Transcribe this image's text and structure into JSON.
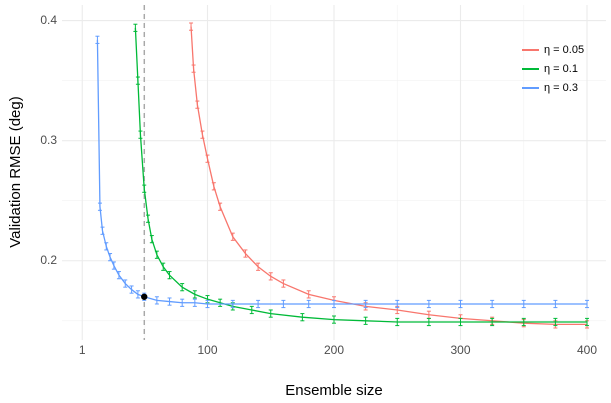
{
  "chart_data": {
    "type": "line",
    "x_label": "Ensemble size",
    "y_label": "Validation RMSE (deg)",
    "xlim": [
      -15,
      415
    ],
    "ylim": [
      0.134,
      0.413
    ],
    "xticks": [
      1,
      100,
      200,
      300,
      400
    ],
    "yticks": [
      0.2,
      0.3,
      0.4
    ],
    "x_minor_ticks": [
      50.5,
      150,
      250,
      350
    ],
    "y_minor_ticks": [
      0.15,
      0.25,
      0.35
    ],
    "grid": true,
    "legend": "top-right",
    "vline": 50,
    "vline_color": "#999999",
    "marker": {
      "x": 50,
      "y": 0.17,
      "color": "#000000"
    },
    "series": [
      {
        "name": "η = 0.05",
        "color": "#f8766d",
        "error": 0.003,
        "x": [
          87,
          89,
          92,
          96,
          100,
          105,
          110,
          120,
          130,
          140,
          150,
          160,
          180,
          200,
          225,
          250,
          275,
          300,
          325,
          350,
          375,
          400
        ],
        "values": [
          0.395,
          0.36,
          0.33,
          0.305,
          0.285,
          0.262,
          0.245,
          0.22,
          0.206,
          0.195,
          0.187,
          0.181,
          0.172,
          0.167,
          0.162,
          0.159,
          0.155,
          0.152,
          0.15,
          0.148,
          0.147,
          0.147
        ]
      },
      {
        "name": "η = 0.1",
        "color": "#00ba38",
        "error": 0.003,
        "x": [
          43,
          45,
          47,
          50,
          53,
          56,
          60,
          65,
          70,
          80,
          90,
          100,
          110,
          120,
          135,
          150,
          175,
          200,
          225,
          250,
          275,
          300,
          325,
          350,
          375,
          400
        ],
        "values": [
          0.394,
          0.35,
          0.305,
          0.26,
          0.235,
          0.218,
          0.205,
          0.195,
          0.188,
          0.178,
          0.172,
          0.168,
          0.165,
          0.162,
          0.159,
          0.156,
          0.153,
          0.151,
          0.15,
          0.149,
          0.149,
          0.149,
          0.149,
          0.149,
          0.149,
          0.149
        ]
      },
      {
        "name": "η = 0.3",
        "color": "#619cff",
        "error": 0.003,
        "x": [
          13,
          15,
          17,
          20,
          23,
          26,
          30,
          35,
          40,
          45,
          50,
          60,
          70,
          80,
          90,
          100,
          120,
          140,
          160,
          180,
          200,
          225,
          250,
          275,
          300,
          325,
          350,
          375,
          400
        ],
        "values": [
          0.384,
          0.245,
          0.225,
          0.212,
          0.203,
          0.196,
          0.188,
          0.181,
          0.176,
          0.172,
          0.17,
          0.167,
          0.166,
          0.165,
          0.165,
          0.164,
          0.164,
          0.164,
          0.164,
          0.164,
          0.164,
          0.164,
          0.164,
          0.164,
          0.164,
          0.164,
          0.164,
          0.164,
          0.164
        ]
      }
    ]
  }
}
